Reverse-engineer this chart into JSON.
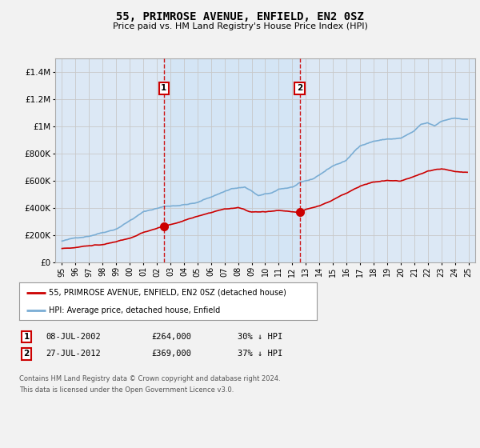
{
  "title": "55, PRIMROSE AVENUE, ENFIELD, EN2 0SZ",
  "subtitle": "Price paid vs. HM Land Registry's House Price Index (HPI)",
  "ylabel_ticks": [
    "£0",
    "£200K",
    "£400K",
    "£600K",
    "£800K",
    "£1M",
    "£1.2M",
    "£1.4M"
  ],
  "ylim": [
    0,
    1500000
  ],
  "xlim_start": 1994.5,
  "xlim_end": 2025.5,
  "sale1_x": 2002.52,
  "sale1_y": 264000,
  "sale2_x": 2012.55,
  "sale2_y": 369000,
  "legend_line1": "55, PRIMROSE AVENUE, ENFIELD, EN2 0SZ (detached house)",
  "legend_line2": "HPI: Average price, detached house, Enfield",
  "footnote1": "Contains HM Land Registry data © Crown copyright and database right 2024.",
  "footnote2": "This data is licensed under the Open Government Licence v3.0.",
  "bg_color": "#dce8f5",
  "fig_bg": "#f2f2f2",
  "grid_color": "#c8c8c8",
  "red_line_color": "#cc0000",
  "blue_line_color": "#7aadd4",
  "shade_color": "#d0e4f5"
}
